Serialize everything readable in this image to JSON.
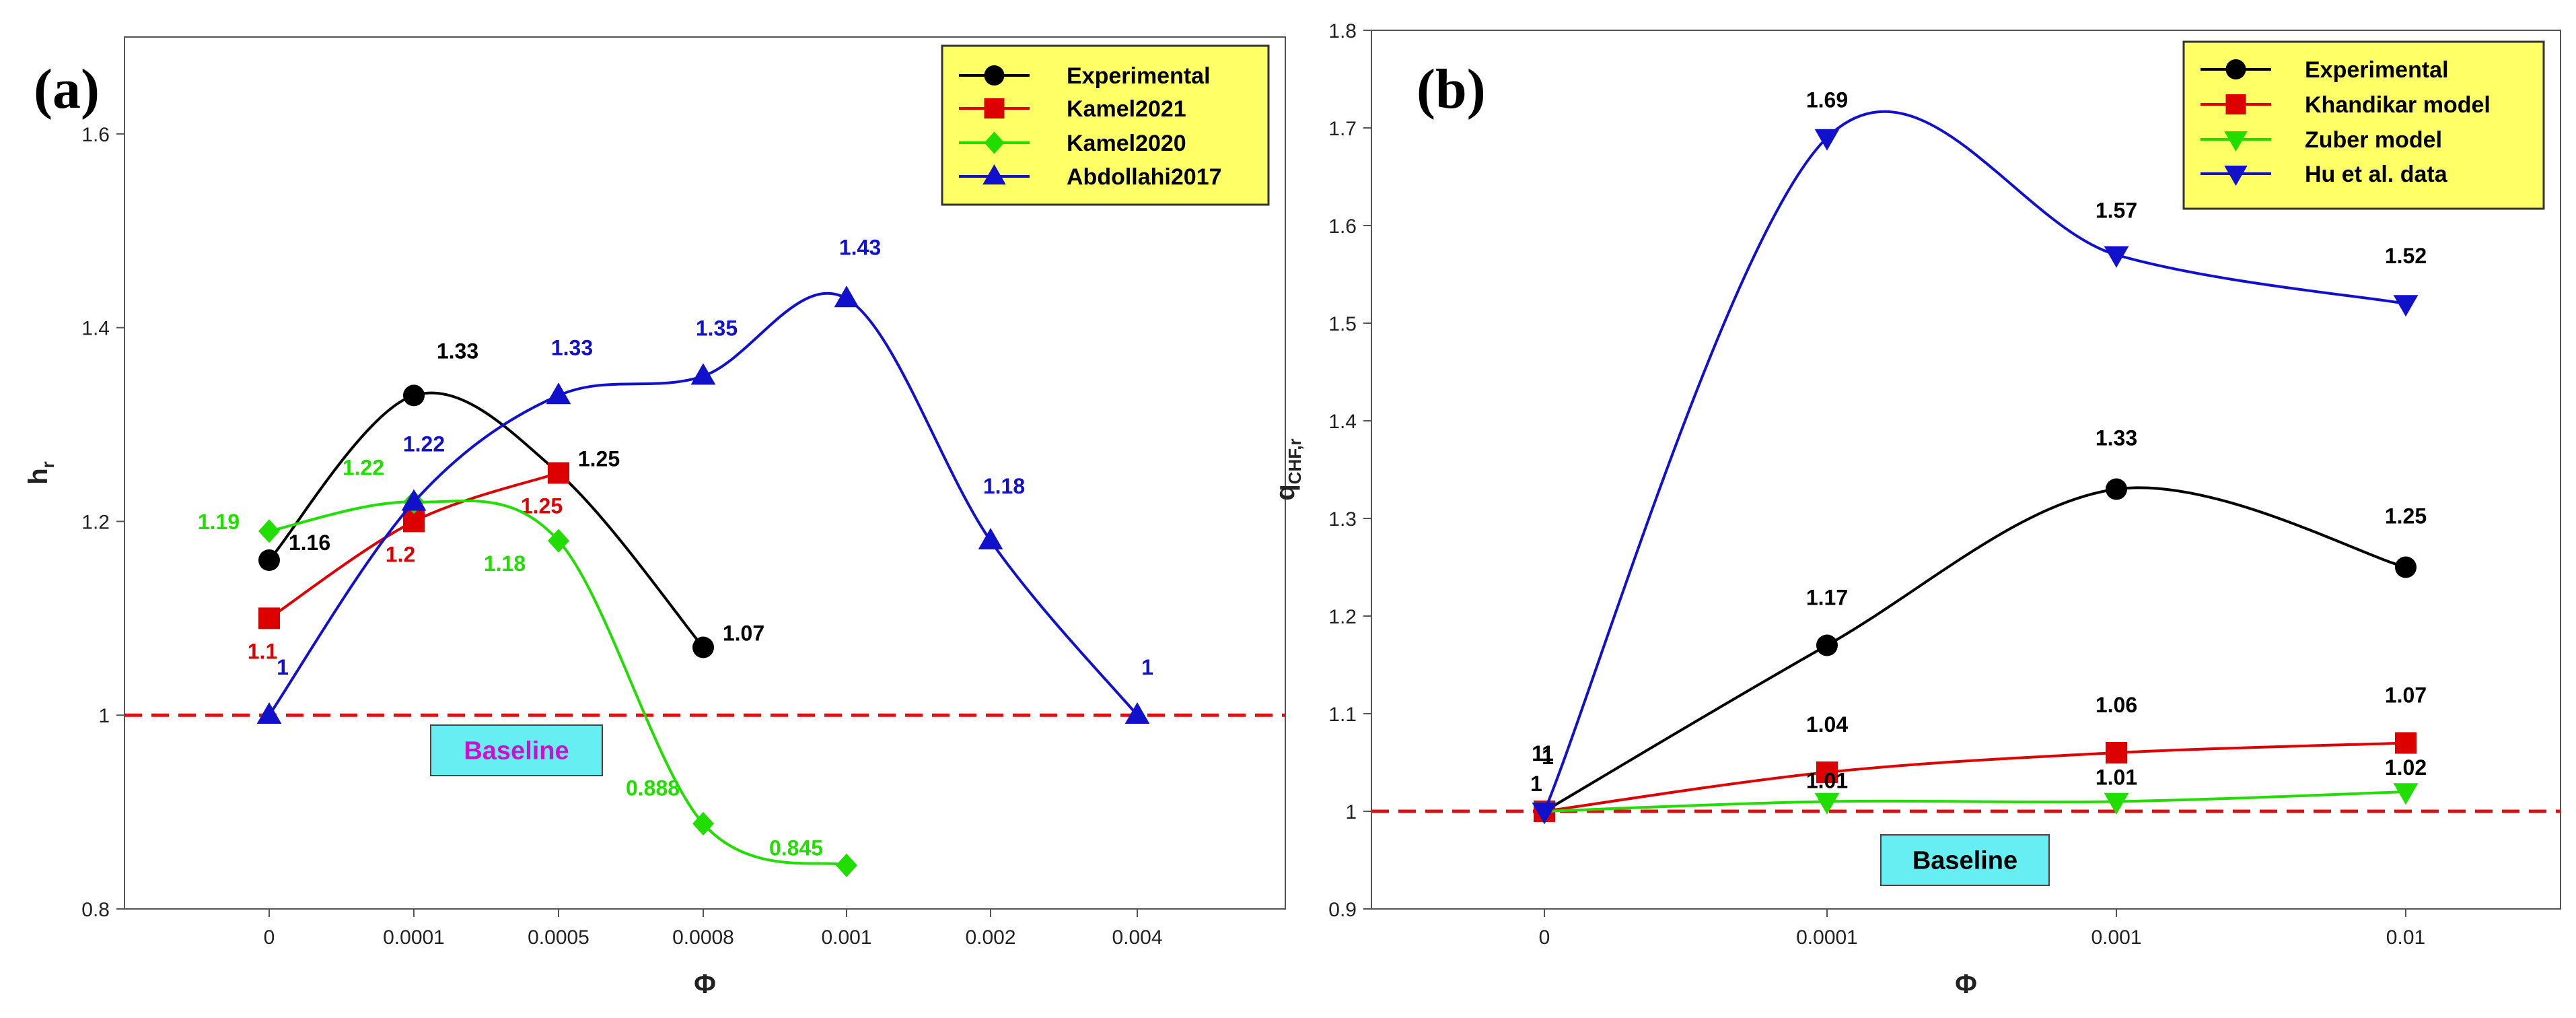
{
  "chart_data": [
    {
      "id": "a",
      "type": "line",
      "panel_label": "(a)",
      "xlabel": "Φ",
      "ylabel": "h",
      "ylabel_sub": "r",
      "ylim": [
        0.8,
        1.7
      ],
      "yticks": [
        0.8,
        1,
        1.2,
        1.4,
        1.6
      ],
      "ytick_labels": [
        "0.8",
        "1",
        "1.2",
        "1.4",
        "1.6"
      ],
      "categories": [
        "0",
        "0.0001",
        "0.0005",
        "0.0008",
        "0.001",
        "0.002",
        "0.004"
      ],
      "baseline": {
        "value": 1,
        "label": "Baseline",
        "color": "#dd1111"
      },
      "legend_position": "top-right",
      "series": [
        {
          "name": "Experimental",
          "color": "#000000",
          "marker": "circle",
          "x": [
            0,
            1,
            2,
            3
          ],
          "y": [
            1.16,
            1.33,
            1.25,
            1.07
          ],
          "labels": [
            "1.16",
            "1.33",
            "1.25",
            "1.07"
          ]
        },
        {
          "name": "Kamel2021",
          "color": "#dd0000",
          "marker": "square",
          "x": [
            0,
            1,
            2
          ],
          "y": [
            1.1,
            1.2,
            1.25
          ],
          "labels": [
            "1.1",
            "1.2",
            "1.25"
          ]
        },
        {
          "name": "Kamel2020",
          "color": "#22dd00",
          "marker": "diamond",
          "x": [
            0,
            1,
            2,
            3,
            4
          ],
          "y": [
            1.19,
            1.22,
            1.18,
            0.888,
            0.845
          ],
          "labels": [
            "1.19",
            "1.22",
            "1.18",
            "0.888",
            "0.845"
          ]
        },
        {
          "name": "Abdollahi2017",
          "color": "#1111cc",
          "marker": "triangle-up",
          "x": [
            0,
            1,
            2,
            3,
            4,
            5,
            6
          ],
          "y": [
            1,
            1.22,
            1.33,
            1.35,
            1.43,
            1.18,
            1
          ],
          "labels": [
            "1",
            "1.22",
            "1.33",
            "1.35",
            "1.43",
            "1.18",
            "1"
          ]
        }
      ]
    },
    {
      "id": "b",
      "type": "line",
      "panel_label": "(b)",
      "xlabel": "Φ",
      "ylabel": "q",
      "ylabel_sub": "CHF,r",
      "ylim": [
        0.9,
        1.8
      ],
      "yticks": [
        0.9,
        1,
        1.1,
        1.2,
        1.3,
        1.4,
        1.5,
        1.6,
        1.7,
        1.8
      ],
      "ytick_labels": [
        "0.9",
        "1",
        "1.1",
        "1.2",
        "1.3",
        "1.4",
        "1.5",
        "1.6",
        "1.7",
        "1.8"
      ],
      "categories": [
        "0",
        "0.0001",
        "0.001",
        "0.01"
      ],
      "baseline": {
        "value": 1,
        "label": "Baseline",
        "color": "#dd1111"
      },
      "legend_position": "top-right",
      "series": [
        {
          "name": "Experimental",
          "color": "#000000",
          "marker": "circle",
          "x": [
            0,
            1,
            2,
            3
          ],
          "y": [
            1,
            1.17,
            1.33,
            1.25
          ],
          "labels": [
            "1",
            "1.17",
            "1.33",
            "1.25"
          ]
        },
        {
          "name": "Khandikar model",
          "color": "#dd0000",
          "marker": "square",
          "x": [
            0,
            1,
            2,
            3
          ],
          "y": [
            1,
            1.04,
            1.06,
            1.07
          ],
          "labels": [
            "1",
            "1.04",
            "1.06",
            "1.07"
          ]
        },
        {
          "name": "Zuber model",
          "color": "#22dd00",
          "marker": "triangle-down",
          "x": [
            0,
            1,
            2,
            3
          ],
          "y": [
            1,
            1.01,
            1.01,
            1.02
          ],
          "labels": [
            "1",
            "1.01",
            "1.01",
            "1.02"
          ]
        },
        {
          "name": "Hu et al. data",
          "color": "#1111cc",
          "marker": "triangle-down",
          "x": [
            0,
            1,
            2,
            3
          ],
          "y": [
            1,
            1.69,
            1.57,
            1.52
          ],
          "labels": [
            "1",
            "1.69",
            "1.57",
            "1.52"
          ]
        }
      ]
    }
  ],
  "colors": {
    "legend_bg": "#ffff66",
    "baseline_box_bg": "#66eef2",
    "baseline_text_a": "#cc11cc",
    "baseline_text_b": "#000000",
    "label_color_a": [
      "#000000",
      "#dd0000",
      "#22dd00",
      "#1111cc"
    ],
    "label_color_b": [
      "#000000",
      "#000000",
      "#000000",
      "#000000"
    ]
  }
}
